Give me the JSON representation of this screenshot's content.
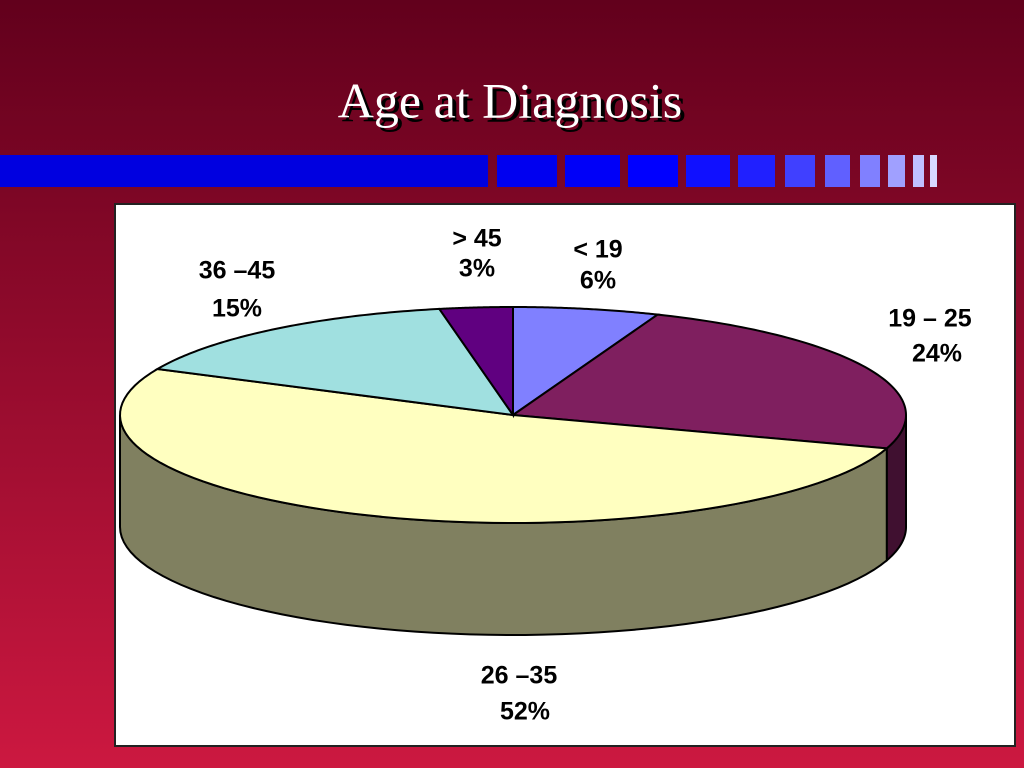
{
  "chart_data": {
    "type": "pie3d",
    "title": "Age at Diagnosis",
    "categories": [
      "< 19",
      "19 – 25",
      "26 –35",
      "36 –45",
      "> 45"
    ],
    "values": [
      6,
      24,
      52,
      15,
      3
    ],
    "value_labels": [
      "6%",
      "24%",
      "52%",
      "15%",
      "3%"
    ],
    "colors": [
      "#8080ff",
      "#7f1f5f",
      "#ffffc0",
      "#a0e0e0",
      "#600080"
    ]
  }
}
